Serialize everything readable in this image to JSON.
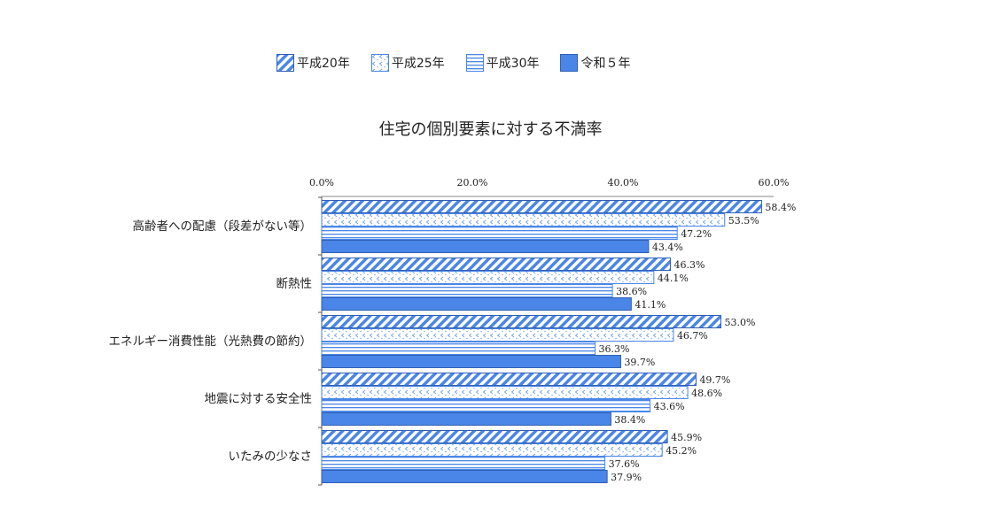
{
  "legend": [
    {
      "name": "平成20年",
      "pattern": "diag"
    },
    {
      "name": "平成25年",
      "pattern": "dots"
    },
    {
      "name": "平成30年",
      "pattern": "hlines"
    },
    {
      "name": "令和５年",
      "pattern": "solid"
    }
  ],
  "colors": {
    "accent": "#4a86e8",
    "border": "#2f5fb3",
    "dark": "#222222"
  },
  "chart_data": {
    "type": "bar",
    "orientation": "horizontal",
    "title": "住宅の個別要素に対する不満率",
    "categories": [
      "高齢者への配慮（段差がない等）",
      "断熱性",
      "エネルギー消費性能（光熱費の節約）",
      "地震に対する安全性",
      "いたみの少なさ"
    ],
    "series": [
      {
        "name": "平成20年",
        "values": [
          58.4,
          46.3,
          53.0,
          49.7,
          45.9
        ]
      },
      {
        "name": "平成25年",
        "values": [
          53.5,
          44.1,
          46.7,
          48.6,
          45.2
        ]
      },
      {
        "name": "平成30年",
        "values": [
          47.2,
          38.6,
          36.3,
          43.6,
          37.6
        ]
      },
      {
        "name": "令和５年",
        "values": [
          43.4,
          41.1,
          39.7,
          38.4,
          37.9
        ]
      }
    ],
    "value_labels": [
      [
        "58.4%",
        "53.5%",
        "47.2%",
        "43.4%"
      ],
      [
        "46.3%",
        "44.1%",
        "38.6%",
        "41.1%"
      ],
      [
        "53.0%",
        "46.7%",
        "36.3%",
        "39.7%"
      ],
      [
        "49.7%",
        "48.6%",
        "43.6%",
        "38.4%"
      ],
      [
        "45.9%",
        "45.2%",
        "37.6%",
        "37.9%"
      ]
    ],
    "x_ticks": [
      "0.0%",
      "20.0%",
      "40.0%",
      "60.0%"
    ],
    "x_tick_values": [
      0,
      20,
      40,
      60
    ],
    "xlim": [
      0,
      60
    ],
    "grid": false,
    "legend_position": "top"
  }
}
